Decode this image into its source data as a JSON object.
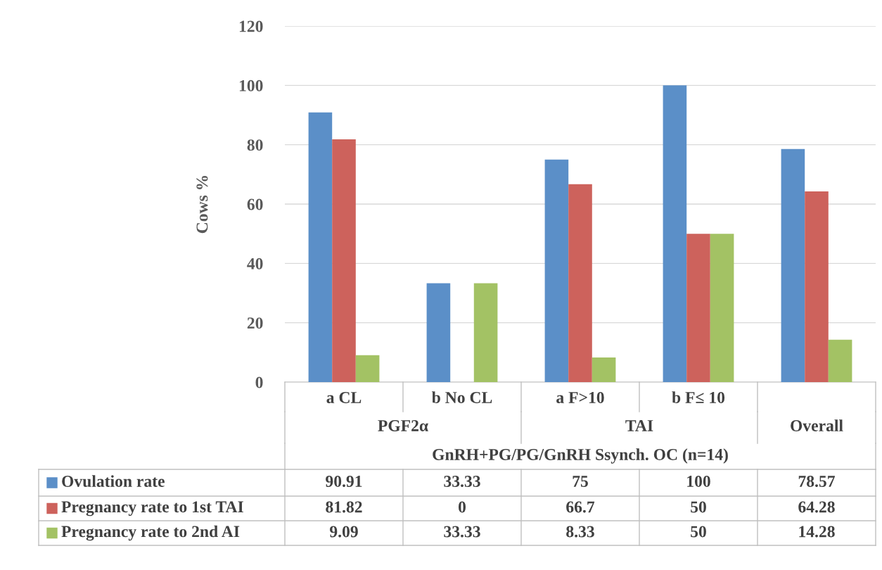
{
  "chart_data": {
    "type": "bar",
    "ylabel": "Cows %",
    "categories": [
      "a CL",
      "b No CL",
      "a F>10",
      "b F≤ 10",
      null
    ],
    "annotations": [
      "PGF2α",
      "TAI",
      "Overall",
      "GnRH+PG/PG/GnRH Ssynch. OC (n=14)"
    ],
    "series": [
      {
        "name": "Ovulation rate",
        "color": "#5b8fc8",
        "values": [
          90.91,
          33.33,
          75,
          100,
          78.57
        ]
      },
      {
        "name": "Pregnancy rate to 1st TAI",
        "color": "#cd625c",
        "values": [
          81.82,
          0,
          66.7,
          50,
          64.28
        ]
      },
      {
        "name": "Pregnancy rate to 2nd AI",
        "color": "#a3c264",
        "values": [
          9.09,
          33.33,
          8.33,
          50,
          14.28
        ]
      }
    ],
    "ylim": [
      0,
      120
    ],
    "yticks": [
      0,
      20,
      40,
      60,
      80,
      100,
      120
    ],
    "grid": "y",
    "data_labels": true,
    "legend": "bottom"
  }
}
